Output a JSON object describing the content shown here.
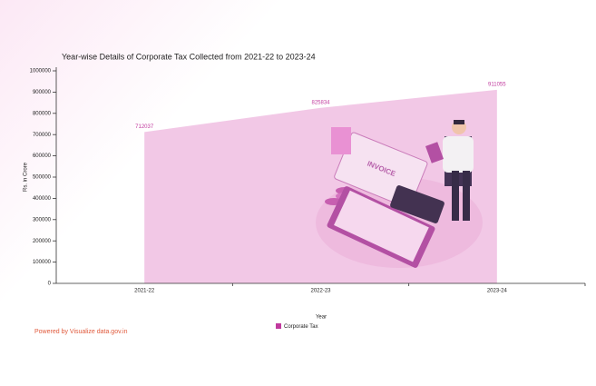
{
  "chart_data": {
    "type": "area",
    "title": "Year-wise Details of Corporate Tax Collected from 2021-22 to 2023-24",
    "x_label": "Year",
    "y_label": "Rs. in Crore",
    "categories": [
      "2021-22",
      "2022-23",
      "2023-24"
    ],
    "series": [
      {
        "name": "Corporate Tax",
        "color": "#c13a9e",
        "values": [
          712037,
          825834,
          911055
        ]
      }
    ],
    "area_color": "#f2c8e6",
    "ylim": [
      0,
      1000000
    ],
    "yticks": [
      0,
      100000,
      200000,
      300000,
      400000,
      500000,
      600000,
      700000,
      800000,
      900000,
      1000000
    ],
    "legend": "bottom"
  },
  "footer": "Powered by Visualize data.gov.in"
}
